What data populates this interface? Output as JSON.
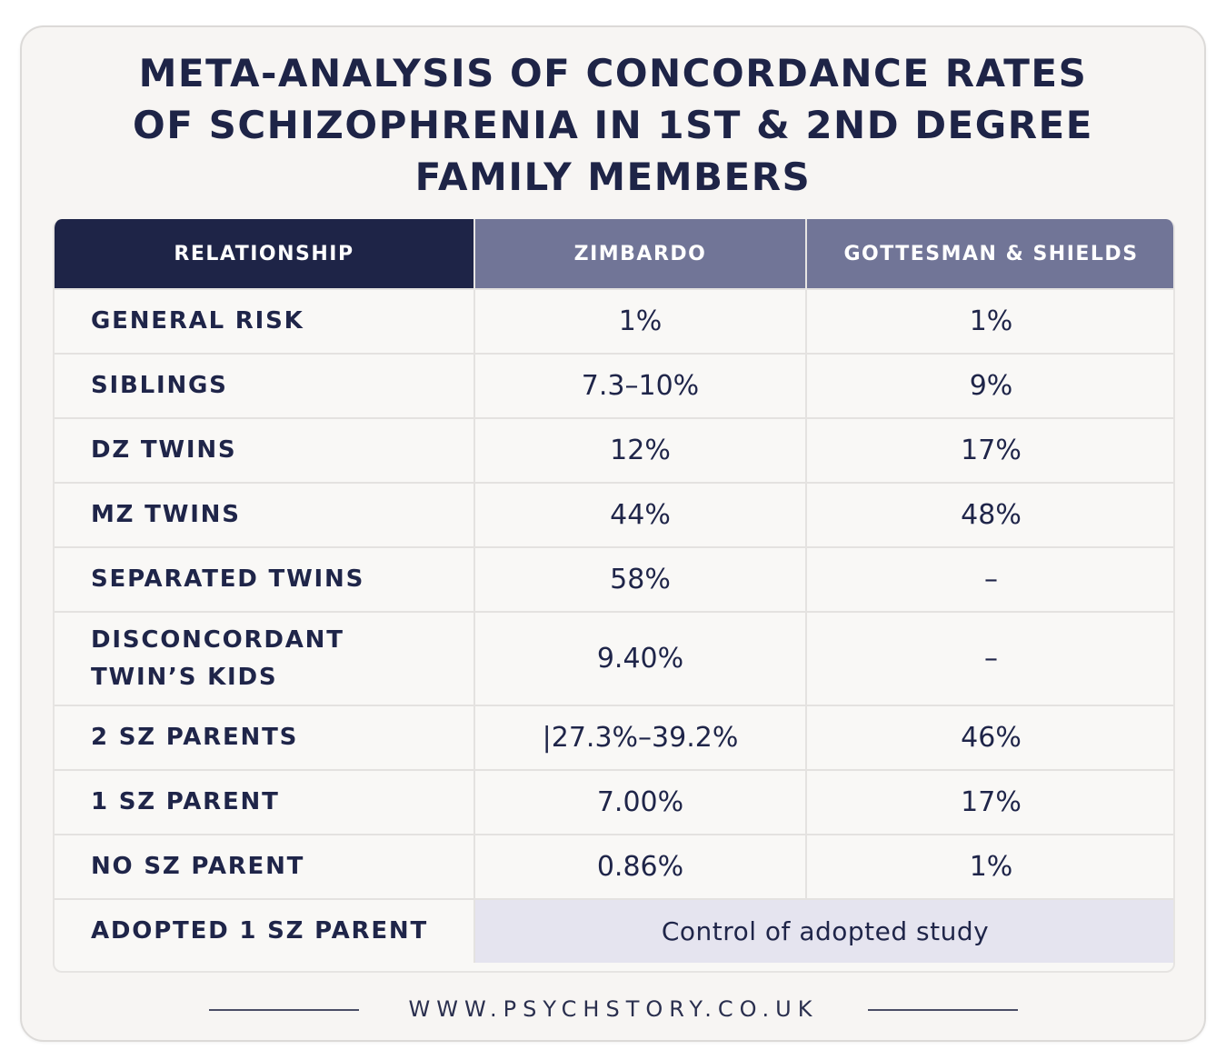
{
  "title": {
    "line1": "META-ANALYSIS OF CONCORDANCE RATES",
    "line2": "OF SCHIZOPHRENIA IN 1ST & 2ND DEGREE",
    "line3": "FAMILY MEMBERS"
  },
  "table": {
    "headers": [
      "RELATIONSHIP",
      "ZIMBARDO",
      "GOTTESMAN & SHIELDS"
    ],
    "rows": [
      {
        "relationship": "GENERAL RISK",
        "zimbardo": "1%",
        "gottesman": "1%"
      },
      {
        "relationship": "SIBLINGS",
        "zimbardo": "7.3–10%",
        "gottesman": "9%"
      },
      {
        "relationship": "DZ TWINS",
        "zimbardo": "12%",
        "gottesman": "17%"
      },
      {
        "relationship": "MZ TWINS",
        "zimbardo": "44%",
        "gottesman": "48%"
      },
      {
        "relationship": "SEPARATED TWINS",
        "zimbardo": "58%",
        "gottesman": "–"
      },
      {
        "relationship_line1": "DISCONCORDANT",
        "relationship_line2": "TWIN’S KIDS",
        "zimbardo": "9.40%",
        "gottesman": "–"
      },
      {
        "relationship": "2 SZ PARENTS",
        "zimbardo": "|27.3%–39.2%",
        "gottesman": "46%"
      },
      {
        "relationship": "1 SZ PARENT",
        "zimbardo": "7.00%",
        "gottesman": "17%"
      },
      {
        "relationship": "NO SZ PARENT",
        "zimbardo": "0.86%",
        "gottesman": "1%"
      },
      {
        "relationship": "ADOPTED 1 SZ PARENT",
        "merged": "Control of adopted study"
      }
    ]
  },
  "footer": {
    "url": "WWW.PSYCHSTORY.CO.UK"
  }
}
